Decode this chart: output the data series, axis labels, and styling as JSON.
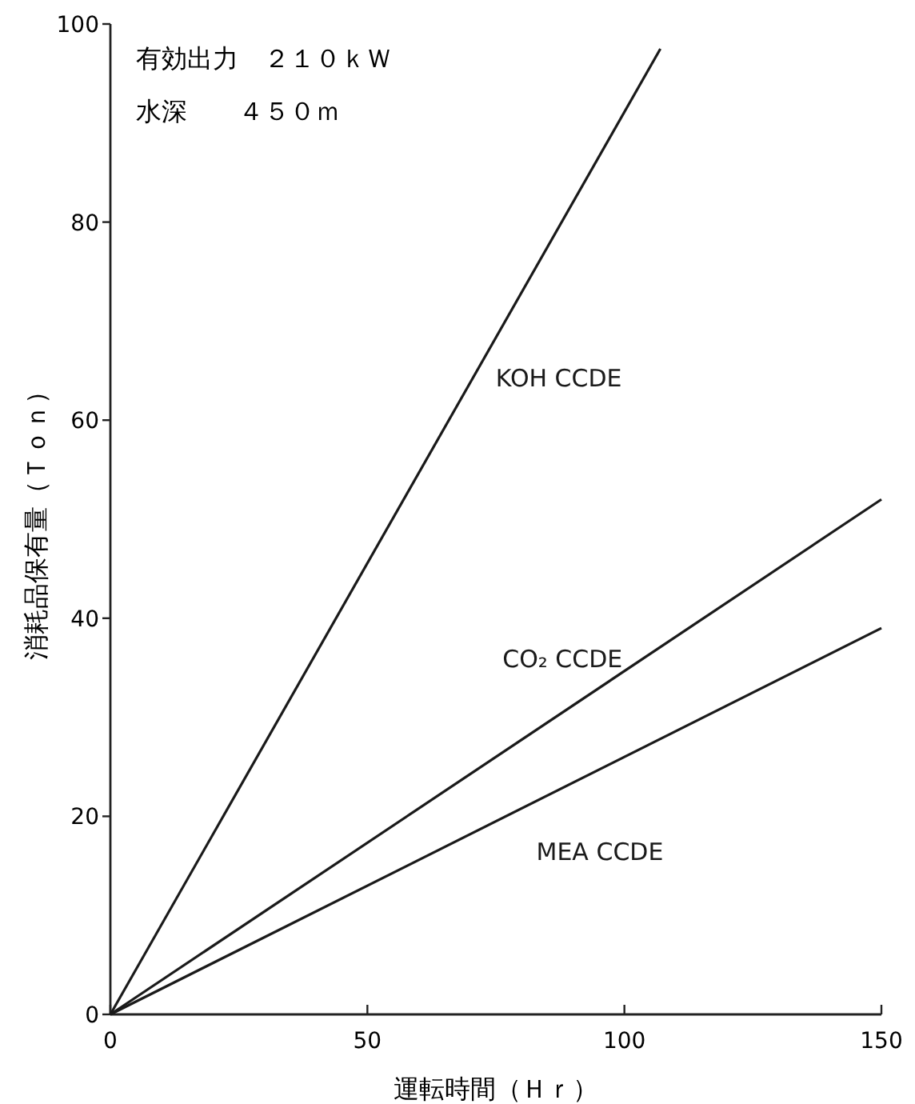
{
  "chart_data": {
    "type": "line",
    "xlabel": "運転時間（Ｈｒ）",
    "ylabel": "消耗品保有量（Ｔｏｎ）",
    "annotations": [
      "有効出力　２１０ｋＷ",
      "水深　　４５０ｍ"
    ],
    "xlim": [
      0,
      150
    ],
    "ylim": [
      0,
      100
    ],
    "xticks": [
      0,
      50,
      100,
      150
    ],
    "yticks": [
      0,
      20,
      40,
      60,
      80,
      100
    ],
    "series": [
      {
        "name": "KOH CCDE",
        "color": "#1a1a1a",
        "x": [
          0,
          107
        ],
        "values": [
          0,
          97.5
        ]
      },
      {
        "name": "CO₂ CCDE",
        "color": "#1a1a1a",
        "x": [
          0,
          150
        ],
        "values": [
          0,
          52
        ]
      },
      {
        "name": "MEA CCDE",
        "color": "#1a1a1a",
        "x": [
          0,
          150
        ],
        "values": [
          0,
          39
        ]
      }
    ]
  }
}
